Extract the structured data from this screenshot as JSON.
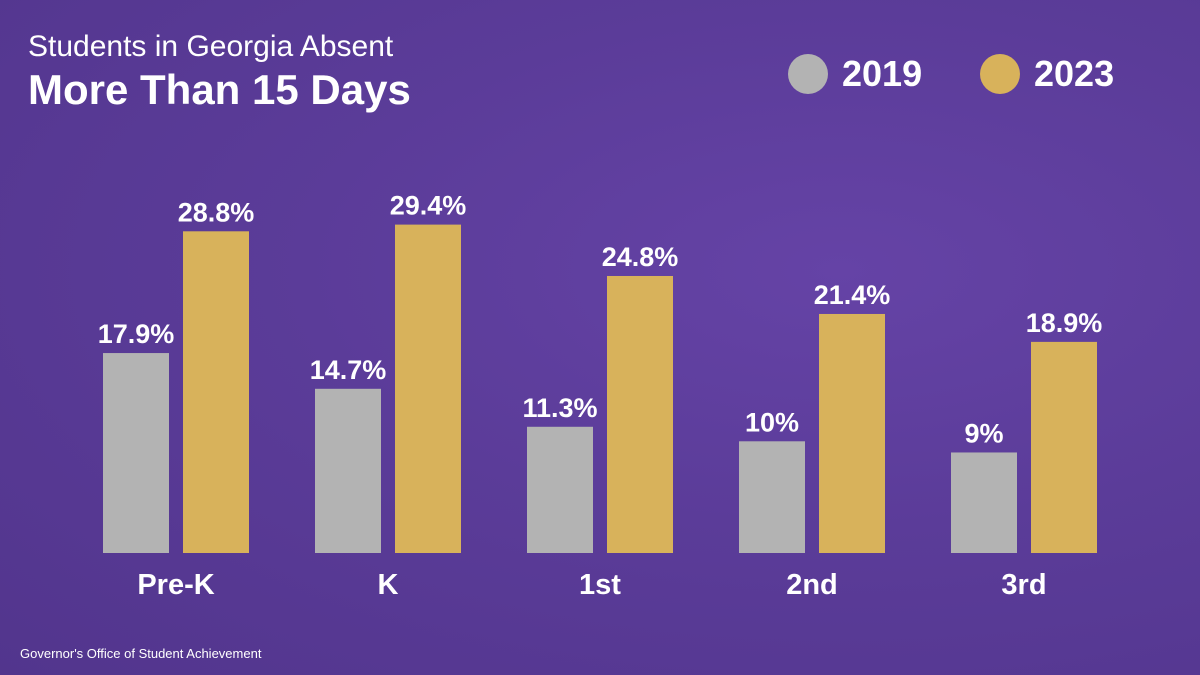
{
  "colors": {
    "series_2019": "#b3b3b3",
    "series_2023": "#d8b25b",
    "text": "#ffffff"
  },
  "header": {
    "line1": "Students in Georgia Absent",
    "line2": "More Than 15 Days"
  },
  "source": "Governor's Office of Student Achievement",
  "chart_data": {
    "type": "bar",
    "title": "Students in Georgia Absent More Than 15 Days",
    "categories": [
      "Pre-K",
      "K",
      "1st",
      "2nd",
      "3rd"
    ],
    "series": [
      {
        "name": "2019",
        "values": [
          17.9,
          14.7,
          11.3,
          10,
          9
        ],
        "labels": [
          "17.9%",
          "14.7%",
          "11.3%",
          "10%",
          "9%"
        ]
      },
      {
        "name": "2023",
        "values": [
          28.8,
          29.4,
          24.8,
          21.4,
          18.9
        ],
        "labels": [
          "28.8%",
          "29.4%",
          "24.8%",
          "21.4%",
          "18.9%"
        ]
      }
    ],
    "ylim": [
      0,
      30
    ],
    "grid": false,
    "legend_position": "top-right",
    "xlabel": "",
    "ylabel": ""
  }
}
